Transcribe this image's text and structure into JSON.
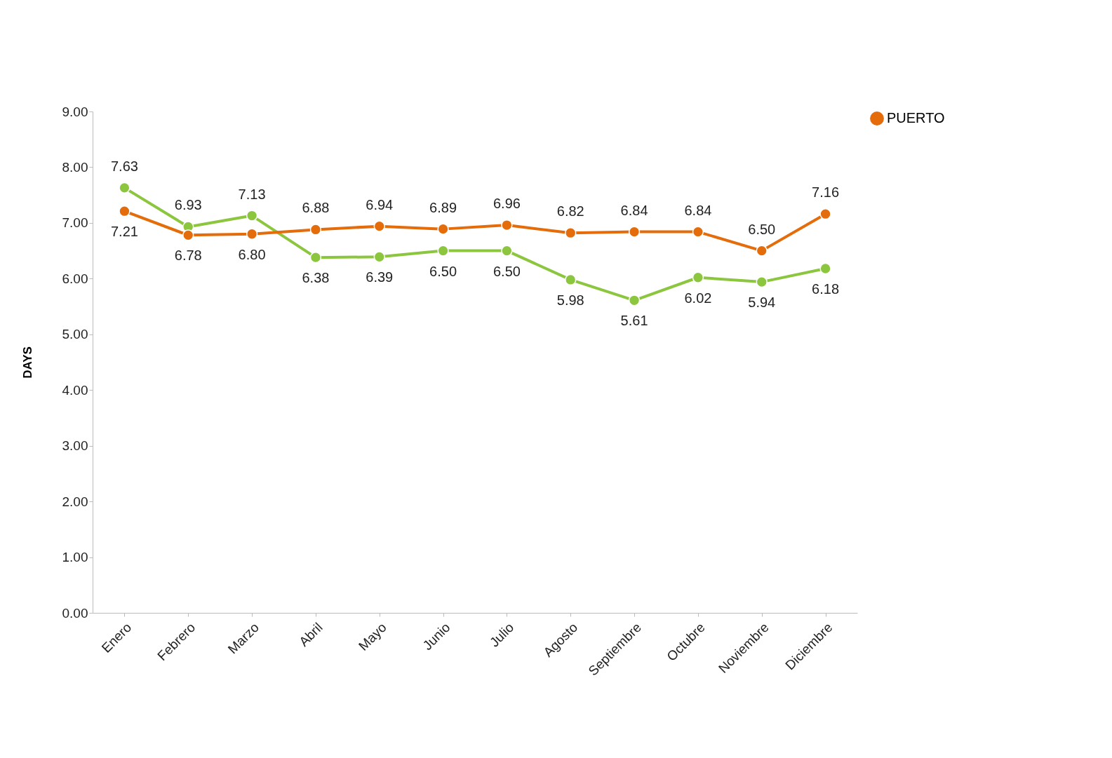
{
  "chart_data": {
    "type": "line",
    "ylabel": "DAYS",
    "categories": [
      "Enero",
      "Febrero",
      "Marzo",
      "Abril",
      "Mayo",
      "Junio",
      "Julio",
      "Agosto",
      "Septiembre",
      "Octubre",
      "Noviembre",
      "Diciembre"
    ],
    "series": [
      {
        "color": "#8cc63f",
        "values": [
          7.63,
          6.93,
          7.13,
          6.38,
          6.39,
          6.5,
          6.5,
          5.98,
          5.61,
          6.02,
          5.94,
          6.18
        ],
        "value_labels": [
          "7.63",
          "6.93",
          "7.13",
          "6.38",
          "6.39",
          "6.50",
          "6.50",
          "5.98",
          "5.61",
          "6.02",
          "5.94",
          "6.18"
        ]
      },
      {
        "name": "PUERTO",
        "color": "#e46c0a",
        "values": [
          7.21,
          6.78,
          6.8,
          6.88,
          6.94,
          6.89,
          6.96,
          6.82,
          6.84,
          6.84,
          6.5,
          7.16
        ],
        "value_labels": [
          "7.21",
          "6.78",
          "6.80",
          "6.88",
          "6.94",
          "6.89",
          "6.96",
          "6.82",
          "6.84",
          "6.84",
          "6.50",
          "7.16"
        ]
      }
    ],
    "ylim": [
      0,
      9
    ],
    "yticks": [
      {
        "value": 0,
        "label": "0.00"
      },
      {
        "value": 1,
        "label": "1.00"
      },
      {
        "value": 2,
        "label": "2.00"
      },
      {
        "value": 3,
        "label": "3.00"
      },
      {
        "value": 4,
        "label": "4.00"
      },
      {
        "value": 5,
        "label": "5.00"
      },
      {
        "value": 6,
        "label": "6.00"
      },
      {
        "value": 7,
        "label": "7.00"
      },
      {
        "value": 8,
        "label": "8.00"
      },
      {
        "value": 9,
        "label": "9.00"
      }
    ],
    "grid": false,
    "legend": "right",
    "marker": "circle",
    "line_style": "solid"
  }
}
